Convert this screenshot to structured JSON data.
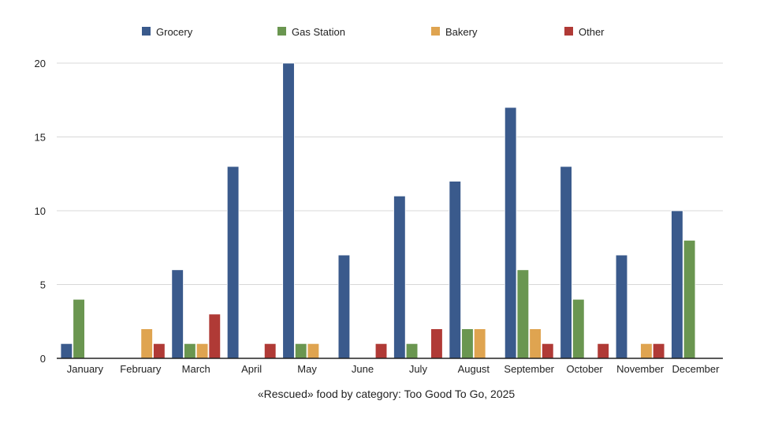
{
  "chart_data": {
    "type": "bar",
    "title": "«Rescued» food by category: Too Good To Go, 2025",
    "xlabel": "",
    "ylabel": "",
    "ylim": [
      0,
      20
    ],
    "yticks": [
      "0",
      "5",
      "10",
      "15",
      "20"
    ],
    "grid": true,
    "legend_position": "top",
    "categories": [
      "January",
      "February",
      "March",
      "April",
      "May",
      "June",
      "July",
      "August",
      "September",
      "October",
      "November",
      "December"
    ],
    "series": [
      {
        "name": "Grocery",
        "color": "#3a5a8c",
        "values": [
          1,
          0,
          6,
          13,
          20,
          7,
          11,
          12,
          17,
          13,
          7,
          10
        ]
      },
      {
        "name": "Gas Station",
        "color": "#6a9650",
        "values": [
          4,
          0,
          1,
          0,
          1,
          0,
          1,
          2,
          6,
          4,
          0,
          8
        ]
      },
      {
        "name": "Bakery",
        "color": "#dfa450",
        "values": [
          0,
          2,
          1,
          0,
          1,
          0,
          0,
          2,
          2,
          0,
          1,
          0
        ]
      },
      {
        "name": "Other",
        "color": "#b03a36",
        "values": [
          0,
          1,
          3,
          1,
          0,
          1,
          2,
          0,
          1,
          1,
          1,
          0
        ]
      }
    ]
  }
}
